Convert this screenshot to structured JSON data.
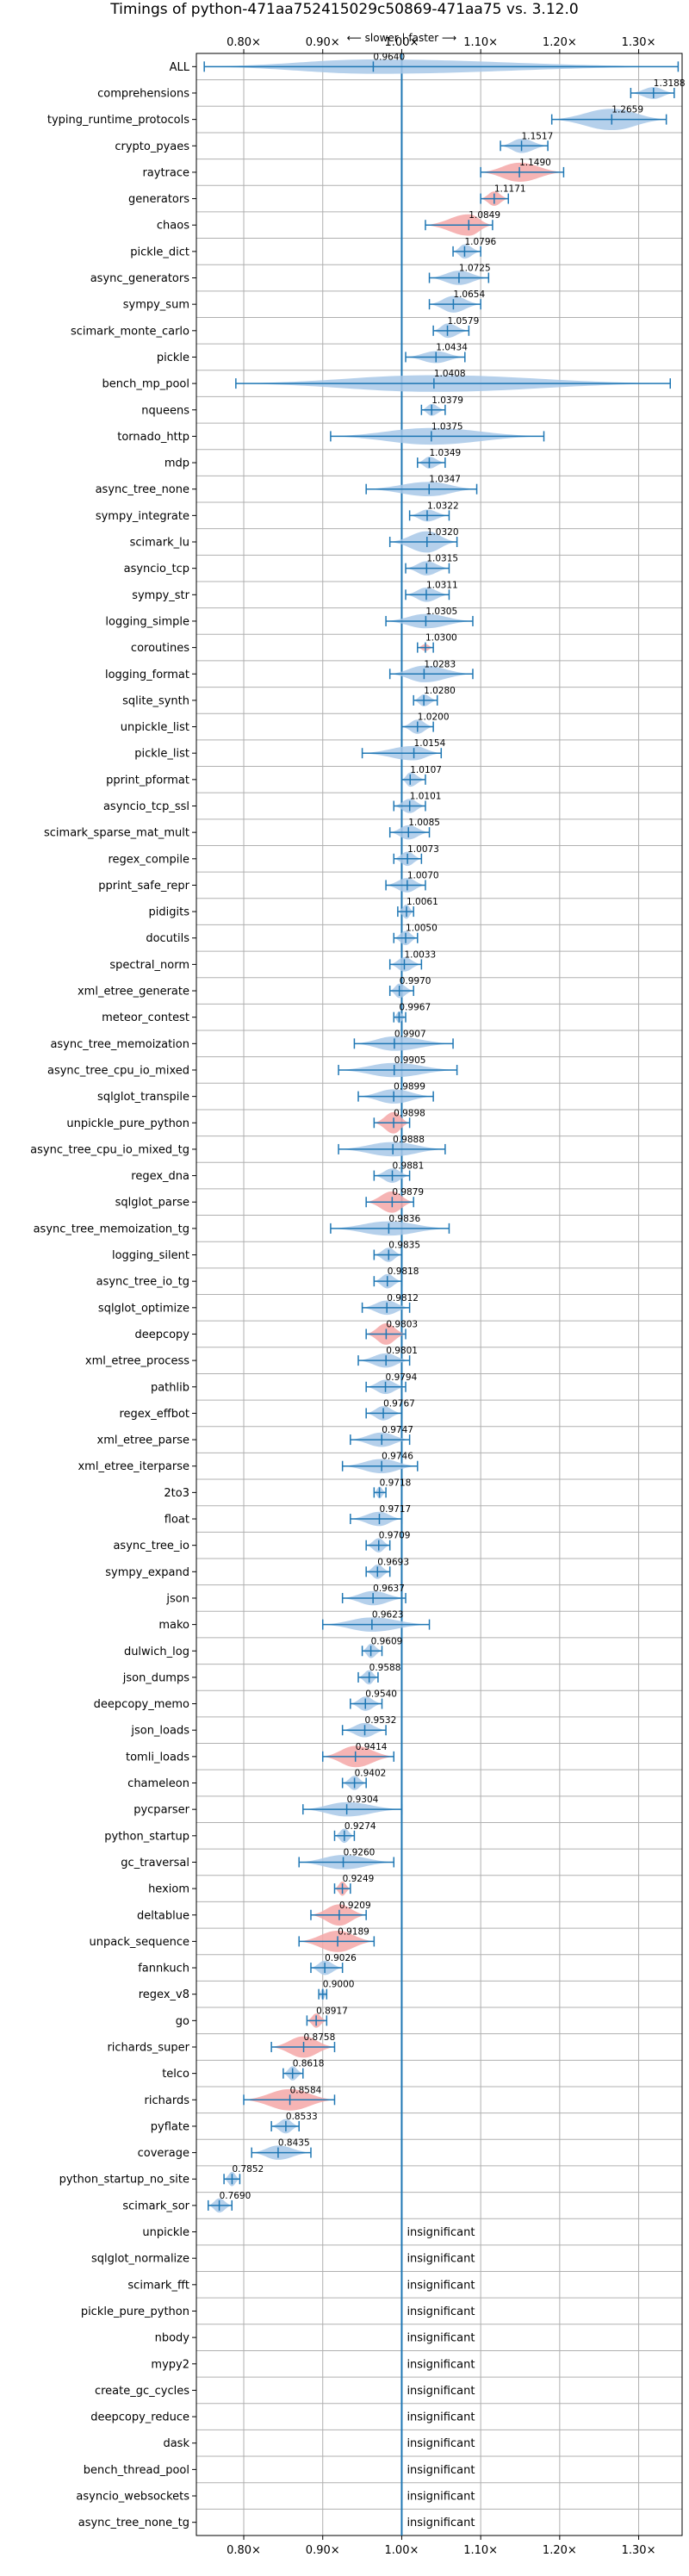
{
  "chart_data": {
    "type": "violin",
    "title": "Timings of python-471aa752415029c50869-471aa75 vs. 3.12.0",
    "subtitle": "⟵ slower | faster ⟶",
    "xlim": [
      0.74,
      1.355
    ],
    "x_ticks": [
      0.8,
      0.9,
      1.0,
      1.1,
      1.2,
      1.3
    ],
    "x_tick_labels": [
      "0.80×",
      "0.90×",
      "1.00×",
      "1.10×",
      "1.20×",
      "1.30×"
    ],
    "reference_line": 1.0,
    "grid": true,
    "colors": {
      "normal": "#a8c8e8",
      "slower": "#f4a7a7",
      "line": "#1f77b4"
    },
    "benchmarks": [
      {
        "name": "ALL",
        "value": 0.964,
        "label": "0.9640",
        "min": 0.75,
        "max": 1.35,
        "width": 0.6,
        "color": "normal"
      },
      {
        "name": "comprehensions",
        "value": 1.3188,
        "label": "1.3188",
        "min": 1.29,
        "max": 1.345,
        "width": 0.5,
        "color": "normal"
      },
      {
        "name": "typing_runtime_protocols",
        "value": 1.2659,
        "label": "1.2659",
        "min": 1.19,
        "max": 1.335,
        "width": 0.9,
        "color": "normal"
      },
      {
        "name": "crypto_pyaes",
        "value": 1.1517,
        "label": "1.1517",
        "min": 1.125,
        "max": 1.185,
        "width": 0.6,
        "color": "normal"
      },
      {
        "name": "raytrace",
        "value": 1.149,
        "label": "1.1490",
        "min": 1.1,
        "max": 1.205,
        "width": 0.8,
        "color": "slower"
      },
      {
        "name": "generators",
        "value": 1.1171,
        "label": "1.1171",
        "min": 1.1,
        "max": 1.135,
        "width": 0.6,
        "color": "slower"
      },
      {
        "name": "chaos",
        "value": 1.0849,
        "label": "1.0849",
        "min": 1.03,
        "max": 1.115,
        "width": 0.9,
        "color": "slower"
      },
      {
        "name": "pickle_dict",
        "value": 1.0796,
        "label": "1.0796",
        "min": 1.065,
        "max": 1.1,
        "width": 0.6,
        "color": "normal"
      },
      {
        "name": "async_generators",
        "value": 1.0725,
        "label": "1.0725",
        "min": 1.035,
        "max": 1.11,
        "width": 0.6,
        "color": "normal"
      },
      {
        "name": "sympy_sum",
        "value": 1.0654,
        "label": "1.0654",
        "min": 1.035,
        "max": 1.1,
        "width": 0.7,
        "color": "normal"
      },
      {
        "name": "scimark_monte_carlo",
        "value": 1.0579,
        "label": "1.0579",
        "min": 1.04,
        "max": 1.085,
        "width": 0.6,
        "color": "normal"
      },
      {
        "name": "pickle",
        "value": 1.0434,
        "label": "1.0434",
        "min": 1.005,
        "max": 1.08,
        "width": 0.5,
        "color": "normal"
      },
      {
        "name": "bench_mp_pool",
        "value": 1.0408,
        "label": "1.0408",
        "min": 0.79,
        "max": 1.34,
        "width": 0.7,
        "color": "normal"
      },
      {
        "name": "nqueens",
        "value": 1.0379,
        "label": "1.0379",
        "min": 1.025,
        "max": 1.055,
        "width": 0.5,
        "color": "normal"
      },
      {
        "name": "tornado_http",
        "value": 1.0375,
        "label": "1.0375",
        "min": 0.91,
        "max": 1.18,
        "width": 0.7,
        "color": "normal"
      },
      {
        "name": "mdp",
        "value": 1.0349,
        "label": "1.0349",
        "min": 1.02,
        "max": 1.055,
        "width": 0.5,
        "color": "normal"
      },
      {
        "name": "async_tree_none",
        "value": 1.0347,
        "label": "1.0347",
        "min": 0.955,
        "max": 1.095,
        "width": 0.6,
        "color": "normal"
      },
      {
        "name": "sympy_integrate",
        "value": 1.0322,
        "label": "1.0322",
        "min": 1.01,
        "max": 1.06,
        "width": 0.5,
        "color": "normal"
      },
      {
        "name": "scimark_lu",
        "value": 1.032,
        "label": "1.0320",
        "min": 0.985,
        "max": 1.07,
        "width": 0.9,
        "color": "normal"
      },
      {
        "name": "asyncio_tcp",
        "value": 1.0315,
        "label": "1.0315",
        "min": 1.005,
        "max": 1.06,
        "width": 0.6,
        "color": "normal"
      },
      {
        "name": "sympy_str",
        "value": 1.0311,
        "label": "1.0311",
        "min": 1.005,
        "max": 1.06,
        "width": 0.6,
        "color": "normal"
      },
      {
        "name": "logging_simple",
        "value": 1.0305,
        "label": "1.0305",
        "min": 0.98,
        "max": 1.09,
        "width": 0.6,
        "color": "normal"
      },
      {
        "name": "coroutines",
        "value": 1.03,
        "label": "1.0300",
        "min": 1.02,
        "max": 1.04,
        "width": 0.3,
        "color": "slower"
      },
      {
        "name": "logging_format",
        "value": 1.0283,
        "label": "1.0283",
        "min": 0.985,
        "max": 1.09,
        "width": 0.7,
        "color": "normal"
      },
      {
        "name": "sqlite_synth",
        "value": 1.028,
        "label": "1.0280",
        "min": 1.015,
        "max": 1.045,
        "width": 0.5,
        "color": "normal"
      },
      {
        "name": "unpickle_list",
        "value": 1.02,
        "label": "1.0200",
        "min": 1.0,
        "max": 1.04,
        "width": 0.6,
        "color": "normal"
      },
      {
        "name": "pickle_list",
        "value": 1.0154,
        "label": "1.0154",
        "min": 0.95,
        "max": 1.05,
        "width": 0.6,
        "color": "normal"
      },
      {
        "name": "pprint_pformat",
        "value": 1.0107,
        "label": "1.0107",
        "min": 1.0,
        "max": 1.03,
        "width": 0.6,
        "color": "normal"
      },
      {
        "name": "asyncio_tcp_ssl",
        "value": 1.0101,
        "label": "1.0101",
        "min": 0.99,
        "max": 1.03,
        "width": 0.6,
        "color": "normal"
      },
      {
        "name": "scimark_sparse_mat_mult",
        "value": 1.0085,
        "label": "1.0085",
        "min": 0.985,
        "max": 1.035,
        "width": 0.6,
        "color": "normal"
      },
      {
        "name": "regex_compile",
        "value": 1.0073,
        "label": "1.0073",
        "min": 0.99,
        "max": 1.025,
        "width": 0.6,
        "color": "normal"
      },
      {
        "name": "pprint_safe_repr",
        "value": 1.007,
        "label": "1.0070",
        "min": 0.98,
        "max": 1.03,
        "width": 0.6,
        "color": "normal"
      },
      {
        "name": "pidigits",
        "value": 1.0061,
        "label": "1.0061",
        "min": 0.995,
        "max": 1.015,
        "width": 0.6,
        "color": "normal"
      },
      {
        "name": "docutils",
        "value": 1.005,
        "label": "1.0050",
        "min": 0.99,
        "max": 1.02,
        "width": 0.6,
        "color": "normal"
      },
      {
        "name": "spectral_norm",
        "value": 1.0033,
        "label": "1.0033",
        "min": 0.985,
        "max": 1.025,
        "width": 0.6,
        "color": "normal"
      },
      {
        "name": "xml_etree_generate",
        "value": 0.997,
        "label": "0.9970",
        "min": 0.985,
        "max": 1.015,
        "width": 0.6,
        "color": "normal"
      },
      {
        "name": "meteor_contest",
        "value": 0.9967,
        "label": "0.9967",
        "min": 0.99,
        "max": 1.005,
        "width": 0.5,
        "color": "normal"
      },
      {
        "name": "async_tree_memoization",
        "value": 0.9907,
        "label": "0.9907",
        "min": 0.94,
        "max": 1.065,
        "width": 0.6,
        "color": "normal"
      },
      {
        "name": "async_tree_cpu_io_mixed",
        "value": 0.9905,
        "label": "0.9905",
        "min": 0.92,
        "max": 1.07,
        "width": 0.6,
        "color": "normal"
      },
      {
        "name": "sqlglot_transpile",
        "value": 0.9899,
        "label": "0.9899",
        "min": 0.945,
        "max": 1.04,
        "width": 0.6,
        "color": "normal"
      },
      {
        "name": "unpickle_pure_python",
        "value": 0.9898,
        "label": "0.9898",
        "min": 0.965,
        "max": 1.01,
        "width": 0.9,
        "color": "slower"
      },
      {
        "name": "async_tree_cpu_io_mixed_tg",
        "value": 0.9888,
        "label": "0.9888",
        "min": 0.92,
        "max": 1.055,
        "width": 0.6,
        "color": "normal"
      },
      {
        "name": "regex_dna",
        "value": 0.9881,
        "label": "0.9881",
        "min": 0.965,
        "max": 1.01,
        "width": 0.6,
        "color": "normal"
      },
      {
        "name": "sqlglot_parse",
        "value": 0.9879,
        "label": "0.9879",
        "min": 0.955,
        "max": 1.015,
        "width": 0.9,
        "color": "slower"
      },
      {
        "name": "async_tree_memoization_tg",
        "value": 0.9836,
        "label": "0.9836",
        "min": 0.91,
        "max": 1.06,
        "width": 0.6,
        "color": "normal"
      },
      {
        "name": "logging_silent",
        "value": 0.9835,
        "label": "0.9835",
        "min": 0.965,
        "max": 1.0,
        "width": 0.6,
        "color": "normal"
      },
      {
        "name": "async_tree_io_tg",
        "value": 0.9818,
        "label": "0.9818",
        "min": 0.965,
        "max": 1.0,
        "width": 0.6,
        "color": "normal"
      },
      {
        "name": "sqlglot_optimize",
        "value": 0.9812,
        "label": "0.9812",
        "min": 0.95,
        "max": 1.01,
        "width": 0.6,
        "color": "normal"
      },
      {
        "name": "deepcopy",
        "value": 0.9803,
        "label": "0.9803",
        "min": 0.955,
        "max": 1.005,
        "width": 0.9,
        "color": "slower"
      },
      {
        "name": "xml_etree_process",
        "value": 0.9801,
        "label": "0.9801",
        "min": 0.945,
        "max": 1.01,
        "width": 0.6,
        "color": "normal"
      },
      {
        "name": "pathlib",
        "value": 0.9794,
        "label": "0.9794",
        "min": 0.955,
        "max": 1.005,
        "width": 0.6,
        "color": "normal"
      },
      {
        "name": "regex_effbot",
        "value": 0.9767,
        "label": "0.9767",
        "min": 0.955,
        "max": 1.0,
        "width": 0.6,
        "color": "normal"
      },
      {
        "name": "xml_etree_parse",
        "value": 0.9747,
        "label": "0.9747",
        "min": 0.935,
        "max": 1.01,
        "width": 0.6,
        "color": "normal"
      },
      {
        "name": "xml_etree_iterparse",
        "value": 0.9746,
        "label": "0.9746",
        "min": 0.925,
        "max": 1.02,
        "width": 0.6,
        "color": "normal"
      },
      {
        "name": "2to3",
        "value": 0.9718,
        "label": "0.9718",
        "min": 0.965,
        "max": 0.98,
        "width": 0.5,
        "color": "normal"
      },
      {
        "name": "float",
        "value": 0.9717,
        "label": "0.9717",
        "min": 0.935,
        "max": 1.0,
        "width": 0.6,
        "color": "normal"
      },
      {
        "name": "async_tree_io",
        "value": 0.9709,
        "label": "0.9709",
        "min": 0.955,
        "max": 0.985,
        "width": 0.6,
        "color": "normal"
      },
      {
        "name": "sympy_expand",
        "value": 0.9693,
        "label": "0.9693",
        "min": 0.955,
        "max": 0.985,
        "width": 0.6,
        "color": "normal"
      },
      {
        "name": "json",
        "value": 0.9637,
        "label": "0.9637",
        "min": 0.925,
        "max": 1.005,
        "width": 0.6,
        "color": "normal"
      },
      {
        "name": "mako",
        "value": 0.9623,
        "label": "0.9623",
        "min": 0.9,
        "max": 1.035,
        "width": 0.6,
        "color": "normal"
      },
      {
        "name": "dulwich_log",
        "value": 0.9609,
        "label": "0.9609",
        "min": 0.95,
        "max": 0.975,
        "width": 0.6,
        "color": "normal"
      },
      {
        "name": "json_dumps",
        "value": 0.9588,
        "label": "0.9588",
        "min": 0.945,
        "max": 0.97,
        "width": 0.6,
        "color": "normal"
      },
      {
        "name": "deepcopy_memo",
        "value": 0.954,
        "label": "0.9540",
        "min": 0.935,
        "max": 0.975,
        "width": 0.6,
        "color": "normal"
      },
      {
        "name": "json_loads",
        "value": 0.9532,
        "label": "0.9532",
        "min": 0.925,
        "max": 0.98,
        "width": 0.6,
        "color": "normal"
      },
      {
        "name": "tomli_loads",
        "value": 0.9414,
        "label": "0.9414",
        "min": 0.9,
        "max": 0.99,
        "width": 0.9,
        "color": "slower"
      },
      {
        "name": "chameleon",
        "value": 0.9402,
        "label": "0.9402",
        "min": 0.925,
        "max": 0.955,
        "width": 0.6,
        "color": "normal"
      },
      {
        "name": "pycparser",
        "value": 0.9304,
        "label": "0.9304",
        "min": 0.875,
        "max": 1.0,
        "width": 0.6,
        "color": "normal"
      },
      {
        "name": "python_startup",
        "value": 0.9274,
        "label": "0.9274",
        "min": 0.915,
        "max": 0.94,
        "width": 0.6,
        "color": "normal"
      },
      {
        "name": "gc_traversal",
        "value": 0.926,
        "label": "0.9260",
        "min": 0.87,
        "max": 0.99,
        "width": 0.6,
        "color": "normal"
      },
      {
        "name": "hexiom",
        "value": 0.9249,
        "label": "0.9249",
        "min": 0.915,
        "max": 0.935,
        "width": 0.6,
        "color": "slower"
      },
      {
        "name": "deltablue",
        "value": 0.9209,
        "label": "0.9209",
        "min": 0.885,
        "max": 0.955,
        "width": 0.9,
        "color": "slower"
      },
      {
        "name": "unpack_sequence",
        "value": 0.9189,
        "label": "0.9189",
        "min": 0.87,
        "max": 0.965,
        "width": 0.9,
        "color": "slower"
      },
      {
        "name": "fannkuch",
        "value": 0.9026,
        "label": "0.9026",
        "min": 0.885,
        "max": 0.925,
        "width": 0.6,
        "color": "normal"
      },
      {
        "name": "regex_v8",
        "value": 0.9,
        "label": "0.9000",
        "min": 0.895,
        "max": 0.905,
        "width": 0.5,
        "color": "normal"
      },
      {
        "name": "go",
        "value": 0.8917,
        "label": "0.8917",
        "min": 0.88,
        "max": 0.905,
        "width": 0.6,
        "color": "slower"
      },
      {
        "name": "richards_super",
        "value": 0.8758,
        "label": "0.8758",
        "min": 0.835,
        "max": 0.915,
        "width": 0.9,
        "color": "slower"
      },
      {
        "name": "telco",
        "value": 0.8618,
        "label": "0.8618",
        "min": 0.85,
        "max": 0.875,
        "width": 0.6,
        "color": "normal"
      },
      {
        "name": "richards",
        "value": 0.8584,
        "label": "0.8584",
        "min": 0.8,
        "max": 0.915,
        "width": 0.9,
        "color": "slower"
      },
      {
        "name": "pyflate",
        "value": 0.8533,
        "label": "0.8533",
        "min": 0.835,
        "max": 0.87,
        "width": 0.6,
        "color": "normal"
      },
      {
        "name": "coverage",
        "value": 0.8435,
        "label": "0.8435",
        "min": 0.81,
        "max": 0.885,
        "width": 0.6,
        "color": "normal"
      },
      {
        "name": "python_startup_no_site",
        "value": 0.7852,
        "label": "0.7852",
        "min": 0.775,
        "max": 0.795,
        "width": 0.6,
        "color": "normal"
      },
      {
        "name": "scimark_sor",
        "value": 0.769,
        "label": "0.7690",
        "min": 0.755,
        "max": 0.785,
        "width": 0.6,
        "color": "normal"
      },
      {
        "name": "unpickle",
        "value": null,
        "label": "insignificant"
      },
      {
        "name": "sqlglot_normalize",
        "value": null,
        "label": "insignificant"
      },
      {
        "name": "scimark_fft",
        "value": null,
        "label": "insignificant"
      },
      {
        "name": "pickle_pure_python",
        "value": null,
        "label": "insignificant"
      },
      {
        "name": "nbody",
        "value": null,
        "label": "insignificant"
      },
      {
        "name": "mypy2",
        "value": null,
        "label": "insignificant"
      },
      {
        "name": "create_gc_cycles",
        "value": null,
        "label": "insignificant"
      },
      {
        "name": "deepcopy_reduce",
        "value": null,
        "label": "insignificant"
      },
      {
        "name": "dask",
        "value": null,
        "label": "insignificant"
      },
      {
        "name": "bench_thread_pool",
        "value": null,
        "label": "insignificant"
      },
      {
        "name": "asyncio_websockets",
        "value": null,
        "label": "insignificant"
      },
      {
        "name": "async_tree_none_tg",
        "value": null,
        "label": "insignificant"
      }
    ]
  }
}
